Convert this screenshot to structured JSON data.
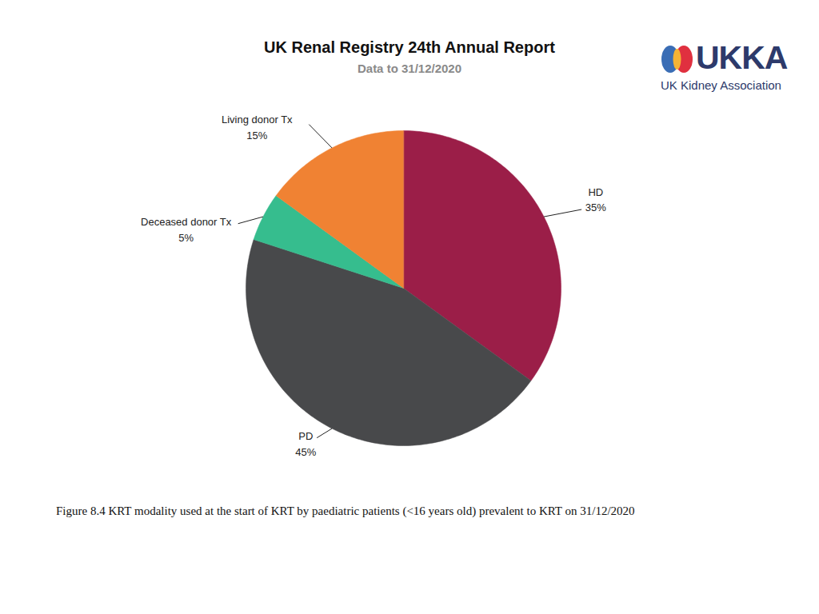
{
  "chart_data": {
    "type": "pie",
    "title": "UK Renal Registry 24th Annual Report",
    "subtitle": "Data to 31/12/2020",
    "categories": [
      "HD",
      "PD",
      "Deceased donor Tx",
      "Living donor Tx"
    ],
    "values": [
      35,
      45,
      5,
      15
    ],
    "value_labels": [
      "35%",
      "45%",
      "5%",
      "15%"
    ],
    "colors": [
      "#9b1e48",
      "#48494b",
      "#36bd8e",
      "#f08233"
    ],
    "data_labels": true,
    "caption": "Figure 8.4 KRT modality used at the start of KRT by paediatric patients (<16 years old) prevalent to KRT on 31/12/2020"
  },
  "logo": {
    "text": "UKKA",
    "subtitle": "UK Kidney Association"
  }
}
